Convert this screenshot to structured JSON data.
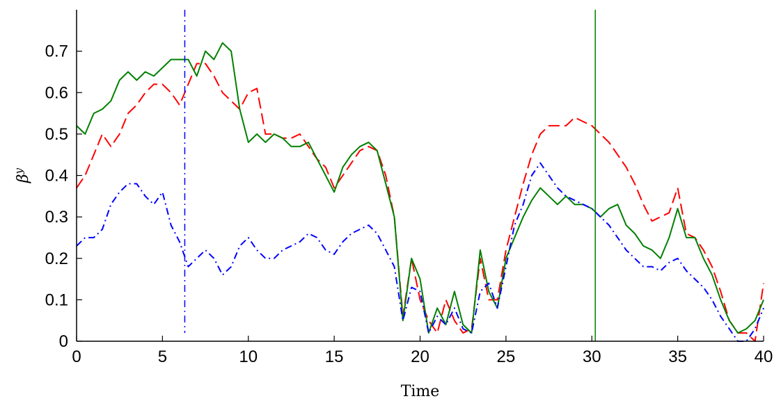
{
  "chart_data": {
    "type": "line",
    "title": "",
    "xlabel": "Time",
    "ylabel": "β",
    "ylabel_superscript": "y",
    "xlim": [
      0,
      40
    ],
    "ylim": [
      0,
      0.8
    ],
    "xticks": [
      0,
      5,
      10,
      15,
      20,
      25,
      30,
      35,
      40
    ],
    "yticks": [
      0,
      0.1,
      0.2,
      0.3,
      0.4,
      0.5,
      0.6,
      0.7
    ],
    "x_tick_labels": [
      "0",
      "5",
      "10",
      "15",
      "20",
      "25",
      "30",
      "35",
      "40"
    ],
    "y_tick_labels": [
      "0",
      "0.1",
      "0.2",
      "0.3",
      "0.4",
      "0.5",
      "0.6",
      "0.7"
    ],
    "grid": false,
    "legend": "none",
    "vertical_lines": [
      {
        "x": 6.3,
        "ymin": 0.02,
        "ymax": 0.8,
        "color": "#0000ff",
        "style": "dashdot"
      },
      {
        "x": 30.2,
        "ymin": 0.0,
        "ymax": 0.8,
        "color": "#008000",
        "style": "solid"
      }
    ],
    "series": [
      {
        "color": "#ff0000",
        "style": "dashed",
        "x": [
          0,
          0.5,
          1,
          1.5,
          2,
          2.5,
          3,
          3.5,
          4,
          4.5,
          5,
          5.5,
          6,
          6.5,
          7,
          7.5,
          8,
          8.5,
          9,
          9.5,
          10,
          10.5,
          11,
          11.5,
          12,
          12.5,
          13,
          13.5,
          14,
          14.5,
          15,
          15.5,
          16,
          16.5,
          17,
          17.5,
          18,
          18.5,
          19,
          19.5,
          20,
          20.5,
          21,
          21.5,
          22,
          22.5,
          23,
          23.5,
          24,
          24.5,
          25,
          25.5,
          26,
          26.5,
          27,
          27.5,
          28,
          28.5,
          29,
          29.5,
          30,
          30.5,
          31,
          31.5,
          32,
          32.5,
          33,
          33.5,
          34,
          34.5,
          35,
          35.5,
          36,
          36.5,
          37,
          37.5,
          38,
          38.5,
          39,
          39.5,
          40
        ],
        "y": [
          0.37,
          0.4,
          0.45,
          0.5,
          0.47,
          0.5,
          0.55,
          0.57,
          0.6,
          0.62,
          0.62,
          0.6,
          0.57,
          0.62,
          0.67,
          0.67,
          0.64,
          0.6,
          0.58,
          0.56,
          0.6,
          0.61,
          0.5,
          0.5,
          0.49,
          0.49,
          0.5,
          0.47,
          0.44,
          0.42,
          0.37,
          0.4,
          0.43,
          0.46,
          0.47,
          0.46,
          0.4,
          0.3,
          0.06,
          0.2,
          0.1,
          0.05,
          0.02,
          0.1,
          0.05,
          0.02,
          0.03,
          0.2,
          0.1,
          0.1,
          0.22,
          0.3,
          0.38,
          0.45,
          0.5,
          0.52,
          0.52,
          0.52,
          0.54,
          0.53,
          0.52,
          0.5,
          0.48,
          0.45,
          0.42,
          0.38,
          0.33,
          0.29,
          0.3,
          0.31,
          0.37,
          0.26,
          0.25,
          0.22,
          0.18,
          0.12,
          0.05,
          0.02,
          0.02,
          0.0,
          0.14
        ]
      },
      {
        "color": "#008000",
        "style": "solid",
        "x": [
          0,
          0.5,
          1,
          1.5,
          2,
          2.5,
          3,
          3.5,
          4,
          4.5,
          5,
          5.5,
          6,
          6.5,
          7,
          7.5,
          8,
          8.5,
          9,
          9.5,
          10,
          10.5,
          11,
          11.5,
          12,
          12.5,
          13,
          13.5,
          14,
          14.5,
          15,
          15.5,
          16,
          16.5,
          17,
          17.5,
          18,
          18.5,
          19,
          19.5,
          20,
          20.5,
          21,
          21.5,
          22,
          22.5,
          23,
          23.5,
          24,
          24.5,
          25,
          25.5,
          26,
          26.5,
          27,
          27.5,
          28,
          28.5,
          29,
          29.5,
          30,
          30.5,
          31,
          31.5,
          32,
          32.5,
          33,
          33.5,
          34,
          34.5,
          35,
          35.5,
          36,
          36.5,
          37,
          37.5,
          38,
          38.5,
          39,
          39.5,
          40
        ],
        "y": [
          0.52,
          0.5,
          0.55,
          0.56,
          0.58,
          0.63,
          0.65,
          0.63,
          0.65,
          0.64,
          0.66,
          0.68,
          0.68,
          0.68,
          0.64,
          0.7,
          0.68,
          0.72,
          0.7,
          0.56,
          0.48,
          0.5,
          0.48,
          0.5,
          0.49,
          0.47,
          0.47,
          0.48,
          0.44,
          0.4,
          0.36,
          0.42,
          0.45,
          0.47,
          0.48,
          0.46,
          0.38,
          0.3,
          0.05,
          0.2,
          0.15,
          0.02,
          0.08,
          0.04,
          0.12,
          0.04,
          0.02,
          0.22,
          0.12,
          0.08,
          0.2,
          0.25,
          0.3,
          0.34,
          0.37,
          0.35,
          0.33,
          0.35,
          0.33,
          0.33,
          0.32,
          0.3,
          0.32,
          0.33,
          0.28,
          0.26,
          0.23,
          0.22,
          0.2,
          0.25,
          0.32,
          0.25,
          0.25,
          0.2,
          0.16,
          0.1,
          0.05,
          0.02,
          0.03,
          0.05,
          0.1
        ]
      },
      {
        "color": "#0000ff",
        "style": "dashdot",
        "x": [
          0,
          0.5,
          1,
          1.5,
          2,
          2.5,
          3,
          3.5,
          4,
          4.5,
          5,
          5.5,
          6,
          6.5,
          7,
          7.5,
          8,
          8.5,
          9,
          9.5,
          10,
          10.5,
          11,
          11.5,
          12,
          12.5,
          13,
          13.5,
          14,
          14.5,
          15,
          15.5,
          16,
          16.5,
          17,
          17.5,
          18,
          18.5,
          19,
          19.5,
          20,
          20.5,
          21,
          21.5,
          22,
          22.5,
          23,
          23.5,
          24,
          24.5,
          25,
          25.5,
          26,
          26.5,
          27,
          27.5,
          28,
          28.5,
          29,
          29.5,
          30,
          30.5,
          31,
          31.5,
          32,
          32.5,
          33,
          33.5,
          34,
          34.5,
          35,
          35.5,
          36,
          36.5,
          37,
          37.5,
          38,
          38.5,
          39,
          39.5,
          40
        ],
        "y": [
          0.23,
          0.25,
          0.25,
          0.27,
          0.33,
          0.36,
          0.38,
          0.38,
          0.35,
          0.33,
          0.36,
          0.28,
          0.24,
          0.18,
          0.2,
          0.22,
          0.2,
          0.16,
          0.18,
          0.23,
          0.25,
          0.22,
          0.2,
          0.2,
          0.22,
          0.23,
          0.24,
          0.26,
          0.25,
          0.22,
          0.21,
          0.24,
          0.26,
          0.27,
          0.28,
          0.26,
          0.22,
          0.18,
          0.05,
          0.13,
          0.12,
          0.02,
          0.06,
          0.04,
          0.08,
          0.03,
          0.02,
          0.12,
          0.14,
          0.08,
          0.18,
          0.28,
          0.33,
          0.4,
          0.43,
          0.4,
          0.37,
          0.35,
          0.34,
          0.33,
          0.32,
          0.3,
          0.28,
          0.25,
          0.22,
          0.2,
          0.18,
          0.18,
          0.17,
          0.19,
          0.2,
          0.17,
          0.15,
          0.13,
          0.1,
          0.06,
          0.03,
          0.0,
          0.0,
          0.03,
          0.08
        ]
      }
    ]
  }
}
